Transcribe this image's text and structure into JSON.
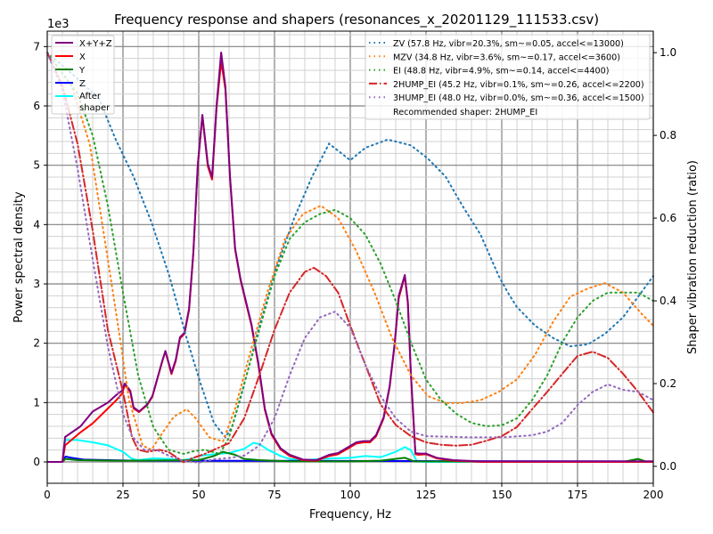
{
  "chart_data": {
    "type": "line",
    "title": "Frequency response and shapers (resonances_x_20201129_111533.csv)",
    "xlabel": "Frequency, Hz",
    "ylabel": "Power spectral density",
    "ylabel_right": "Shaper vibration reduction (ratio)",
    "y_offset_label": "1e3",
    "xlim": [
      0,
      200
    ],
    "ylim": [
      -0.36,
      7.26
    ],
    "ylim_right": [
      -0.041,
      1.052
    ],
    "xticks": [
      "0",
      "25",
      "50",
      "75",
      "100",
      "125",
      "150",
      "175",
      "200"
    ],
    "yticks": [
      "0",
      "1",
      "2",
      "3",
      "4",
      "5",
      "6",
      "7"
    ],
    "yticks_right": [
      "0.0",
      "0.2",
      "0.4",
      "0.6",
      "0.8",
      "1.0"
    ],
    "grid": true,
    "legend_left_placement": "top-left",
    "legend_right_placement": "top-right",
    "psd_series": [
      {
        "name": "X+Y+Z",
        "color": "#800080",
        "x": [
          0,
          5,
          5.9,
          11,
          15,
          20,
          22.6,
          24.7,
          25.6,
          27.4,
          28.5,
          30.3,
          33,
          34.7,
          38,
          39,
          41,
          42.4,
          43.8,
          45.3,
          46.8,
          48.2,
          49.7,
          51.2,
          53,
          54.4,
          55.9,
          57.4,
          58.8,
          60.3,
          62,
          63.8,
          67.4,
          69.7,
          71.8,
          74,
          77,
          80,
          84.4,
          88.8,
          93,
          96,
          99,
          102,
          104.4,
          106.5,
          108.5,
          111,
          113,
          114.7,
          116,
          118,
          119,
          120,
          121.5,
          122.6,
          125,
          128.5,
          134,
          143,
          200
        ],
        "y": [
          0,
          0,
          0.42,
          0.6,
          0.85,
          1.0,
          1.12,
          1.2,
          1.32,
          1.2,
          0.92,
          0.85,
          0.97,
          1.11,
          1.71,
          1.87,
          1.5,
          1.72,
          2.1,
          2.18,
          2.58,
          3.52,
          5.02,
          5.85,
          5.02,
          4.8,
          6.02,
          6.9,
          6.32,
          4.82,
          3.6,
          3.08,
          2.32,
          1.65,
          0.9,
          0.48,
          0.23,
          0.12,
          0.04,
          0.03,
          0.12,
          0.15,
          0.24,
          0.33,
          0.35,
          0.35,
          0.45,
          0.75,
          1.28,
          2.02,
          2.8,
          3.15,
          2.7,
          1.5,
          0.15,
          0.14,
          0.14,
          0.07,
          0.03,
          0.01,
          0.01
        ]
      },
      {
        "name": "X",
        "color": "#ff0000",
        "x": [
          0,
          5,
          5.9,
          11,
          15,
          20,
          22.6,
          24.7,
          25.6,
          27.4,
          28.5,
          30.3,
          33,
          34.7,
          38,
          39,
          41,
          42.4,
          43.8,
          45.3,
          46.8,
          48.2,
          49.7,
          51.2,
          53,
          54.4,
          55.9,
          57.4,
          58.8,
          60.3,
          62,
          63.8,
          67.4,
          69.7,
          71.8,
          74,
          77,
          80,
          84.4,
          88.8,
          93,
          96,
          99,
          102,
          104.4,
          106.5,
          108.5,
          111,
          113,
          114.7,
          116,
          118,
          119,
          120,
          121.5,
          122.6,
          125,
          128.5,
          134,
          143,
          200
        ],
        "y": [
          0,
          0,
          0.28,
          0.5,
          0.65,
          0.9,
          1.03,
          1.15,
          1.3,
          1.18,
          0.9,
          0.84,
          0.96,
          1.1,
          1.7,
          1.86,
          1.48,
          1.7,
          2.08,
          2.16,
          2.56,
          3.5,
          5.0,
          5.83,
          4.98,
          4.76,
          5.98,
          6.75,
          6.28,
          4.8,
          3.58,
          3.06,
          2.3,
          1.63,
          0.88,
          0.46,
          0.21,
          0.1,
          0.03,
          0.02,
          0.1,
          0.13,
          0.22,
          0.31,
          0.33,
          0.33,
          0.43,
          0.73,
          1.26,
          2.0,
          2.76,
          3.13,
          2.68,
          1.48,
          0.13,
          0.12,
          0.13,
          0.06,
          0.02,
          0,
          0
        ]
      },
      {
        "name": "Y",
        "color": "#008000",
        "x": [
          0,
          5,
          6,
          10,
          25,
          50,
          55,
          58,
          62,
          65,
          70,
          80,
          100,
          110,
          118,
          121,
          190,
          195,
          198,
          200
        ],
        "y": [
          0,
          0,
          0.05,
          0.03,
          0.02,
          0.03,
          0.1,
          0.17,
          0.12,
          0.05,
          0.03,
          0.01,
          0.01,
          0.02,
          0.07,
          0.01,
          0,
          0.05,
          0,
          0
        ]
      },
      {
        "name": "Z",
        "color": "#0000ff",
        "x": [
          0,
          5,
          6,
          8,
          12,
          20,
          30,
          200
        ],
        "y": [
          0,
          0,
          0.09,
          0.07,
          0.04,
          0.03,
          0.02,
          0.01
        ]
      },
      {
        "name": "After\nshaper",
        "label_lines": [
          "After",
          "shaper"
        ],
        "color": "#00ffff",
        "x": [
          0,
          5,
          6,
          10,
          15,
          20,
          25,
          28,
          30,
          35,
          40,
          45,
          48,
          50,
          55,
          60,
          65,
          68,
          70,
          73,
          77,
          80,
          85,
          90,
          95,
          100,
          105,
          110,
          115,
          118,
          120,
          122,
          125,
          200
        ],
        "y": [
          0,
          0,
          0.37,
          0.37,
          0.33,
          0.28,
          0.17,
          0.05,
          0.03,
          0.06,
          0.05,
          0.03,
          0.06,
          0.1,
          0.13,
          0.15,
          0.22,
          0.32,
          0.3,
          0.2,
          0.1,
          0.05,
          0.03,
          0.05,
          0.06,
          0.07,
          0.1,
          0.08,
          0.17,
          0.25,
          0.2,
          0.01,
          0,
          0
        ]
      }
    ],
    "shaper_series": [
      {
        "name": "ZV (57.8 Hz, vibr=20.3%, sm~=0.05, accel<=13000)",
        "color": "#1f77b4",
        "dash": "dot",
        "x": [
          0,
          8,
          17,
          22.6,
          28.5,
          34.4,
          40.3,
          46,
          50.6,
          55,
          58.8,
          61,
          64,
          69.7,
          75.6,
          81.5,
          87.4,
          93,
          100,
          105,
          112.4,
          120,
          125.6,
          131.5,
          137,
          143,
          149,
          152,
          155,
          161,
          167,
          172.6,
          178.5,
          184,
          190,
          196,
          200
        ],
        "y": [
          1.0,
          0.95,
          0.89,
          0.79,
          0.7,
          0.59,
          0.46,
          0.31,
          0.2,
          0.105,
          0.07,
          0.095,
          0.17,
          0.33,
          0.48,
          0.6,
          0.7,
          0.78,
          0.74,
          0.77,
          0.79,
          0.776,
          0.744,
          0.7,
          0.63,
          0.56,
          0.46,
          0.42,
          0.385,
          0.34,
          0.31,
          0.29,
          0.295,
          0.32,
          0.36,
          0.42,
          0.46
        ]
      },
      {
        "name": "MZV (34.8 Hz, vibr=3.6%, sm~=0.17, accel<=3600)",
        "color": "#ff7f0e",
        "dash": "dot",
        "x": [
          0,
          8,
          14,
          20,
          24,
          27,
          31.5,
          34.4,
          37,
          41.8,
          46,
          49,
          53.5,
          58,
          62,
          66.8,
          72.6,
          78.5,
          84.4,
          90.3,
          96,
          102,
          108,
          113.8,
          120,
          125.6,
          131.5,
          137,
          143,
          149,
          155,
          161,
          167,
          172.6,
          178.5,
          184,
          190,
          196,
          200
        ],
        "y": [
          1.0,
          0.92,
          0.78,
          0.5,
          0.31,
          0.16,
          0.05,
          0.04,
          0.07,
          0.12,
          0.138,
          0.116,
          0.07,
          0.06,
          0.14,
          0.27,
          0.42,
          0.55,
          0.61,
          0.63,
          0.6,
          0.52,
          0.42,
          0.31,
          0.22,
          0.17,
          0.153,
          0.153,
          0.16,
          0.18,
          0.21,
          0.27,
          0.35,
          0.41,
          0.43,
          0.443,
          0.42,
          0.37,
          0.34
        ]
      },
      {
        "name": "EI (48.8 Hz, vibr=4.9%, sm~=0.14, accel<=4400)",
        "color": "#2ca02c",
        "dash": "dot",
        "x": [
          0,
          10,
          15,
          20,
          25,
          30,
          35,
          40,
          45,
          48,
          52,
          57,
          60,
          65,
          70,
          75,
          80,
          85,
          90,
          95,
          100,
          105,
          110,
          115,
          120,
          125,
          130,
          135,
          140,
          145,
          150,
          155,
          160,
          165,
          170,
          175,
          180,
          185,
          190,
          195,
          200
        ],
        "y": [
          1.0,
          0.9,
          0.8,
          0.63,
          0.42,
          0.22,
          0.095,
          0.04,
          0.03,
          0.036,
          0.04,
          0.03,
          0.07,
          0.2,
          0.33,
          0.46,
          0.55,
          0.59,
          0.61,
          0.62,
          0.6,
          0.56,
          0.49,
          0.4,
          0.3,
          0.21,
          0.16,
          0.127,
          0.105,
          0.097,
          0.099,
          0.116,
          0.16,
          0.22,
          0.3,
          0.36,
          0.4,
          0.42,
          0.42,
          0.42,
          0.4
        ]
      },
      {
        "name": "2HUMP_EI (45.2 Hz, vibr=0.1%, sm~=0.26, accel<=2200)",
        "color": "#d62728",
        "dash": "dashdot",
        "x": [
          0,
          5,
          10,
          15,
          20,
          25,
          28,
          30,
          33,
          37,
          40,
          45,
          48,
          52,
          55,
          60,
          65,
          70,
          75,
          80,
          85,
          88,
          92,
          96,
          100,
          105,
          110,
          115,
          120,
          125,
          130,
          135,
          140,
          145,
          150,
          155,
          160,
          165,
          170,
          175,
          180,
          185,
          190,
          195,
          200
        ],
        "y": [
          1.0,
          0.92,
          0.78,
          0.57,
          0.33,
          0.18,
          0.07,
          0.04,
          0.035,
          0.04,
          0.035,
          0.01,
          0.02,
          0.03,
          0.04,
          0.056,
          0.116,
          0.22,
          0.33,
          0.42,
          0.47,
          0.48,
          0.46,
          0.42,
          0.34,
          0.245,
          0.15,
          0.1,
          0.073,
          0.058,
          0.052,
          0.05,
          0.052,
          0.062,
          0.073,
          0.095,
          0.138,
          0.18,
          0.224,
          0.267,
          0.277,
          0.262,
          0.224,
          0.18,
          0.13
        ]
      },
      {
        "name": "3HUMP_EI (48.0 Hz, vibr=0.0%, sm~=0.36, accel<=1500)",
        "color": "#9467bd",
        "dash": "dot",
        "x": [
          0,
          5,
          10,
          15,
          20,
          25,
          28,
          32,
          36,
          40,
          45,
          50,
          55,
          60,
          65,
          70,
          75,
          80,
          85,
          90,
          95,
          100,
          105,
          110,
          115,
          120,
          125,
          130,
          140,
          150,
          160,
          165,
          170,
          175,
          180,
          185,
          190,
          195,
          200
        ],
        "y": [
          1.0,
          0.91,
          0.72,
          0.5,
          0.29,
          0.127,
          0.073,
          0.04,
          0.04,
          0.026,
          0.013,
          0.009,
          0.017,
          0.02,
          0.026,
          0.05,
          0.116,
          0.22,
          0.31,
          0.36,
          0.374,
          0.335,
          0.245,
          0.17,
          0.116,
          0.084,
          0.073,
          0.072,
          0.07,
          0.07,
          0.075,
          0.084,
          0.105,
          0.148,
          0.18,
          0.198,
          0.185,
          0.18,
          0.16
        ]
      }
    ],
    "recommended_label": "Recommended shaper: 2HUMP_EI"
  }
}
